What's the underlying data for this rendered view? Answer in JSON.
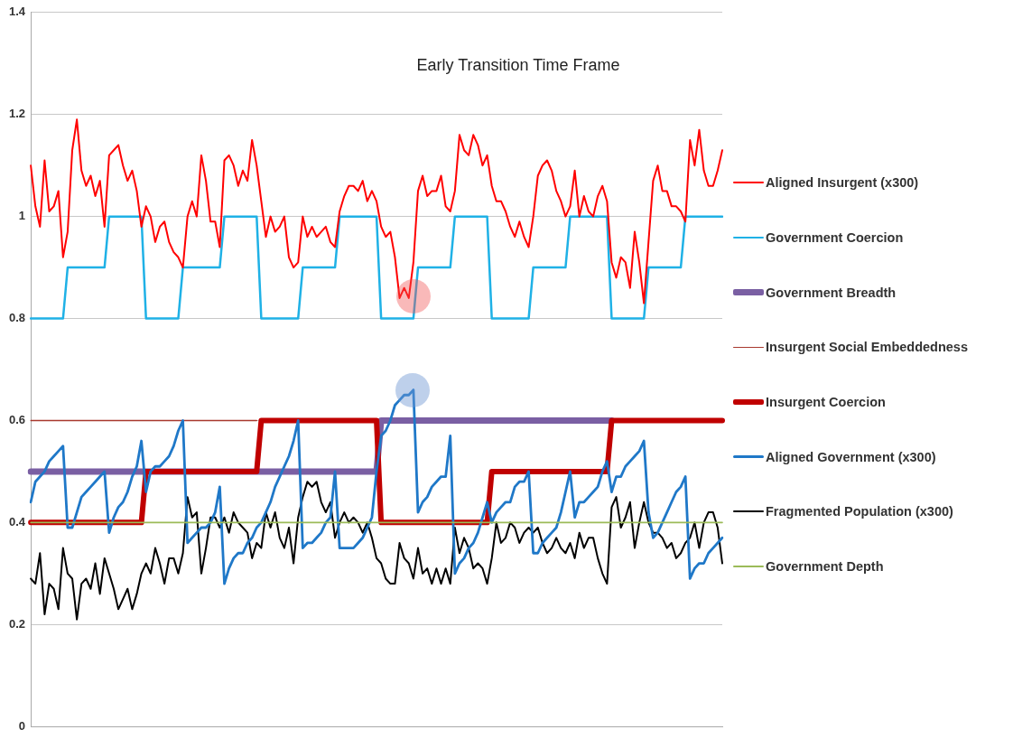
{
  "chart_data": {
    "type": "line",
    "title": "Early Transition Time Frame",
    "categories": [
      null,
      null,
      null,
      null,
      null,
      null,
      null,
      null,
      null,
      null,
      null,
      null,
      null,
      null,
      null,
      null,
      null,
      null,
      null,
      null,
      null,
      null,
      null,
      null,
      null,
      null,
      null,
      null,
      null,
      null,
      null,
      null,
      null,
      null,
      null,
      null,
      null,
      null,
      null,
      null,
      null,
      null,
      null,
      null,
      null,
      null,
      null,
      null,
      null,
      null,
      null,
      null,
      null,
      null,
      null,
      null,
      null,
      null,
      null,
      null,
      null,
      null,
      null,
      null,
      null,
      null,
      null,
      null,
      null,
      null,
      null,
      null,
      null,
      null,
      null,
      null,
      null,
      null,
      null,
      null,
      null,
      null,
      null,
      null,
      null,
      null,
      null,
      null,
      null,
      null,
      null,
      null,
      null,
      null,
      null,
      null,
      null,
      null,
      null,
      null,
      null,
      null,
      null,
      null,
      null,
      null,
      null,
      null,
      null,
      null,
      null,
      null,
      null,
      null,
      null,
      null,
      null,
      null,
      null,
      null,
      null,
      null,
      null,
      null,
      null,
      null,
      null,
      null,
      null,
      null,
      null,
      null,
      null,
      null,
      null,
      null,
      null,
      null,
      null,
      null,
      null,
      null,
      null,
      null,
      null,
      null,
      null,
      null,
      null,
      null,
      null
    ],
    "ylim": [
      0,
      1.4
    ],
    "yticks": [
      0,
      0.2,
      0.4,
      0.6,
      0.8,
      1,
      1.2,
      1.4
    ],
    "grid": "y",
    "legend": "right",
    "tick_labels": "y",
    "line_style": "solid",
    "series": [
      {
        "name": "Aligned Insurgent (x300)",
        "color": "#ff0000",
        "values": [
          1.1,
          1.02,
          0.98,
          1.11,
          1.01,
          1.02,
          1.05,
          0.92,
          0.97,
          1.13,
          1.19,
          1.09,
          1.06,
          1.08,
          1.04,
          1.07,
          0.98,
          1.12,
          1.13,
          1.14,
          1.1,
          1.07,
          1.09,
          1.05,
          0.98,
          1.02,
          1,
          0.95,
          0.98,
          0.99,
          0.95,
          0.93,
          0.92,
          0.9,
          1,
          1.03,
          1,
          1.12,
          1.07,
          0.99,
          0.99,
          0.94,
          1.11,
          1.12,
          1.1,
          1.06,
          1.09,
          1.07,
          1.15,
          1.1,
          1.03,
          0.96,
          1,
          0.97,
          0.98,
          1,
          0.92,
          0.9,
          0.91,
          1,
          0.96,
          0.98,
          0.96,
          0.97,
          0.98,
          0.95,
          0.94,
          1.01,
          1.04,
          1.06,
          1.06,
          1.05,
          1.07,
          1.03,
          1.05,
          1.03,
          0.98,
          0.96,
          0.97,
          0.92,
          0.84,
          0.86,
          0.84,
          0.91,
          1.05,
          1.08,
          1.04,
          1.05,
          1.05,
          1.08,
          1.02,
          1.01,
          1.05,
          1.16,
          1.13,
          1.12,
          1.16,
          1.14,
          1.1,
          1.12,
          1.06,
          1.03,
          1.03,
          1.01,
          0.98,
          0.96,
          0.99,
          0.96,
          0.94,
          1,
          1.08,
          1.1,
          1.11,
          1.09,
          1.05,
          1.03,
          1,
          1.02,
          1.09,
          1,
          1.04,
          1.01,
          1,
          1.04,
          1.06,
          1.03,
          0.91,
          0.88,
          0.92,
          0.91,
          0.86,
          0.97,
          0.91,
          0.83,
          0.95,
          1.07,
          1.1,
          1.05,
          1.05,
          1.02,
          1.02,
          1.01,
          0.99,
          1.15,
          1.1,
          1.17,
          1.09,
          1.06,
          1.06,
          1.09,
          1.13
        ]
      },
      {
        "name": "Government Coercion",
        "color": "#1fb1e6",
        "values": [
          0.8,
          0.8,
          0.8,
          0.8,
          0.8,
          0.8,
          0.8,
          0.8,
          0.9,
          0.9,
          0.9,
          0.9,
          0.9,
          0.9,
          0.9,
          0.9,
          0.9,
          1,
          1,
          1,
          1,
          1,
          1,
          1,
          1,
          0.8,
          0.8,
          0.8,
          0.8,
          0.8,
          0.8,
          0.8,
          0.8,
          0.9,
          0.9,
          0.9,
          0.9,
          0.9,
          0.9,
          0.9,
          0.9,
          0.9,
          1,
          1,
          1,
          1,
          1,
          1,
          1,
          1,
          0.8,
          0.8,
          0.8,
          0.8,
          0.8,
          0.8,
          0.8,
          0.8,
          0.8,
          0.9,
          0.9,
          0.9,
          0.9,
          0.9,
          0.9,
          0.9,
          0.9,
          1,
          1,
          1,
          1,
          1,
          1,
          1,
          1,
          1,
          0.8,
          0.8,
          0.8,
          0.8,
          0.8,
          0.8,
          0.8,
          0.8,
          0.9,
          0.9,
          0.9,
          0.9,
          0.9,
          0.9,
          0.9,
          0.9,
          1,
          1,
          1,
          1,
          1,
          1,
          1,
          1,
          0.8,
          0.8,
          0.8,
          0.8,
          0.8,
          0.8,
          0.8,
          0.8,
          0.8,
          0.9,
          0.9,
          0.9,
          0.9,
          0.9,
          0.9,
          0.9,
          0.9,
          1,
          1,
          1,
          1,
          1,
          1,
          1,
          1,
          1,
          0.8,
          0.8,
          0.8,
          0.8,
          0.8,
          0.8,
          0.8,
          0.8,
          0.9,
          0.9,
          0.9,
          0.9,
          0.9,
          0.9,
          0.9,
          0.9,
          1,
          1,
          1,
          1,
          1,
          1,
          1,
          1,
          1
        ]
      },
      {
        "name": "Government Breadth",
        "color": "#7a5fa3",
        "values": [
          0.5,
          0.5,
          0.5,
          0.5,
          0.5,
          0.5,
          0.5,
          0.5,
          0.5,
          0.5,
          0.5,
          0.5,
          0.5,
          0.5,
          0.5,
          0.5,
          0.5,
          0.5,
          0.5,
          0.5,
          0.5,
          0.5,
          0.5,
          0.5,
          0.5,
          0.5,
          0.5,
          0.5,
          0.5,
          0.5,
          0.5,
          0.5,
          0.5,
          0.5,
          0.5,
          0.5,
          0.5,
          0.5,
          0.5,
          0.5,
          0.5,
          0.5,
          0.5,
          0.5,
          0.5,
          0.5,
          0.5,
          0.5,
          0.5,
          0.5,
          0.5,
          0.5,
          0.5,
          0.5,
          0.5,
          0.5,
          0.5,
          0.5,
          0.5,
          0.5,
          0.5,
          0.5,
          0.5,
          0.5,
          0.5,
          0.5,
          0.5,
          0.5,
          0.5,
          0.5,
          0.5,
          0.5,
          0.5,
          0.5,
          0.5,
          0.5,
          0.6,
          0.6,
          0.6,
          0.6,
          0.6,
          0.6,
          0.6,
          0.6,
          0.6,
          0.6,
          0.6,
          0.6,
          0.6,
          0.6,
          0.6,
          0.6,
          0.6,
          0.6,
          0.6,
          0.6,
          0.6,
          0.6,
          0.6,
          0.6,
          0.6,
          0.6,
          0.6,
          0.6,
          0.6,
          0.6,
          0.6,
          0.6,
          0.6,
          0.6,
          0.6,
          0.6,
          0.6,
          0.6,
          0.6,
          0.6,
          0.6,
          0.6,
          0.6,
          0.6,
          0.6,
          0.6,
          0.6,
          0.6,
          0.6,
          0.6,
          0.6,
          null,
          null,
          null,
          null,
          null,
          null,
          null,
          null,
          null,
          null,
          null,
          null,
          null,
          null,
          null,
          null,
          null,
          null,
          null,
          null,
          null,
          null,
          null,
          null
        ]
      },
      {
        "name": "Insurgent Social Embeddedness",
        "color": "#a8392f",
        "values": [
          0.6,
          0.6,
          0.6,
          0.6,
          0.6,
          0.6,
          0.6,
          0.6,
          0.6,
          0.6,
          0.6,
          0.6,
          0.6,
          0.6,
          0.6,
          0.6,
          0.6,
          0.6,
          0.6,
          0.6,
          0.6,
          0.6,
          0.6,
          0.6,
          0.6,
          0.6,
          0.6,
          0.6,
          0.6,
          0.6,
          0.6,
          0.6,
          0.6,
          0.6,
          0.6,
          0.6,
          0.6,
          0.6,
          0.6,
          0.6,
          0.6,
          0.6,
          0.6,
          0.6,
          0.6,
          0.6,
          0.6,
          0.6,
          0.6,
          0.6,
          null,
          null,
          null,
          null,
          null,
          null,
          null,
          null,
          null,
          null,
          null,
          null,
          null,
          null,
          null,
          null,
          null,
          null,
          null,
          null,
          null,
          null,
          null,
          null,
          null,
          null,
          null,
          null,
          null,
          null,
          null,
          null,
          null,
          null,
          null,
          null,
          null,
          null,
          null,
          null,
          null,
          null,
          null,
          null,
          null,
          null,
          null,
          null,
          null,
          null,
          null,
          null,
          null,
          null,
          null,
          null,
          null,
          null,
          null,
          null,
          null,
          null,
          null,
          null,
          null,
          null,
          null,
          null,
          null,
          null,
          null,
          null,
          null,
          null,
          null,
          null,
          null,
          null,
          null,
          null,
          null,
          null,
          null,
          null,
          null,
          null,
          null,
          null,
          null,
          null,
          null,
          null,
          null,
          null,
          null,
          null,
          null,
          null,
          null,
          null,
          null
        ]
      },
      {
        "name": "Insurgent Coercion",
        "color": "#c00000",
        "values": [
          0.4,
          0.4,
          0.4,
          0.4,
          0.4,
          0.4,
          0.4,
          0.4,
          0.4,
          0.4,
          0.4,
          0.4,
          0.4,
          0.4,
          0.4,
          0.4,
          0.4,
          0.4,
          0.4,
          0.4,
          0.4,
          0.4,
          0.4,
          0.4,
          0.4,
          0.5,
          0.5,
          0.5,
          0.5,
          0.5,
          0.5,
          0.5,
          0.5,
          0.5,
          0.5,
          0.5,
          0.5,
          0.5,
          0.5,
          0.5,
          0.5,
          0.5,
          0.5,
          0.5,
          0.5,
          0.5,
          0.5,
          0.5,
          0.5,
          0.5,
          0.6,
          0.6,
          0.6,
          0.6,
          0.6,
          0.6,
          0.6,
          0.6,
          0.6,
          0.6,
          0.6,
          0.6,
          0.6,
          0.6,
          0.6,
          0.6,
          0.6,
          0.6,
          0.6,
          0.6,
          0.6,
          0.6,
          0.6,
          0.6,
          0.6,
          0.6,
          0.4,
          0.4,
          0.4,
          0.4,
          0.4,
          0.4,
          0.4,
          0.4,
          0.4,
          0.4,
          0.4,
          0.4,
          0.4,
          0.4,
          0.4,
          0.4,
          0.4,
          0.4,
          0.4,
          0.4,
          0.4,
          0.4,
          0.4,
          0.4,
          0.5,
          0.5,
          0.5,
          0.5,
          0.5,
          0.5,
          0.5,
          0.5,
          0.5,
          0.5,
          0.5,
          0.5,
          0.5,
          0.5,
          0.5,
          0.5,
          0.5,
          0.5,
          0.5,
          0.5,
          0.5,
          0.5,
          0.5,
          0.5,
          0.5,
          0.5,
          0.6,
          0.6,
          0.6,
          0.6,
          0.6,
          0.6,
          0.6,
          0.6,
          0.6,
          0.6,
          0.6,
          0.6,
          0.6,
          0.6,
          0.6,
          0.6,
          0.6,
          0.6,
          0.6,
          0.6,
          0.6,
          0.6,
          0.6,
          0.6,
          0.6
        ]
      },
      {
        "name": "Aligned Government (x300)",
        "color": "#1f78c8",
        "values": [
          0.44,
          0.48,
          0.49,
          0.5,
          0.52,
          0.53,
          0.54,
          0.55,
          0.39,
          0.39,
          0.42,
          0.45,
          0.46,
          0.47,
          0.48,
          0.49,
          0.5,
          0.38,
          0.41,
          0.43,
          0.44,
          0.46,
          0.49,
          0.51,
          0.56,
          0.46,
          0.5,
          0.51,
          0.51,
          0.52,
          0.53,
          0.55,
          0.58,
          0.6,
          0.36,
          0.37,
          0.38,
          0.39,
          0.39,
          0.4,
          0.42,
          0.47,
          0.28,
          0.31,
          0.33,
          0.34,
          0.34,
          0.36,
          0.37,
          0.39,
          0.4,
          0.42,
          0.44,
          0.47,
          0.49,
          0.51,
          0.53,
          0.56,
          0.6,
          0.35,
          0.36,
          0.36,
          0.37,
          0.38,
          0.4,
          0.41,
          0.5,
          0.35,
          0.35,
          0.35,
          0.35,
          0.36,
          0.37,
          0.39,
          0.41,
          0.5,
          0.57,
          0.58,
          0.6,
          0.63,
          0.64,
          0.65,
          0.65,
          0.66,
          0.42,
          0.44,
          0.45,
          0.47,
          0.48,
          0.49,
          0.49,
          0.57,
          0.3,
          0.32,
          0.33,
          0.35,
          0.36,
          0.38,
          0.41,
          0.44,
          0.4,
          0.42,
          0.43,
          0.44,
          0.44,
          0.47,
          0.48,
          0.48,
          0.5,
          0.34,
          0.34,
          0.36,
          0.37,
          0.38,
          0.39,
          0.42,
          0.46,
          0.5,
          0.41,
          0.44,
          0.44,
          0.45,
          0.46,
          0.47,
          0.5,
          0.52,
          0.46,
          0.49,
          0.49,
          0.51,
          0.52,
          0.53,
          0.54,
          0.56,
          0.42,
          0.37,
          0.38,
          0.4,
          0.42,
          0.44,
          0.46,
          0.47,
          0.49,
          0.29,
          0.31,
          0.32,
          0.32,
          0.34,
          0.35,
          0.36,
          0.37
        ]
      },
      {
        "name": "Fragmented Population (x300)",
        "color": "#000000",
        "values": [
          0.29,
          0.28,
          0.34,
          0.22,
          0.28,
          0.27,
          0.23,
          0.35,
          0.3,
          0.29,
          0.21,
          0.28,
          0.29,
          0.27,
          0.32,
          0.26,
          0.33,
          0.3,
          0.27,
          0.23,
          0.25,
          0.27,
          0.23,
          0.26,
          0.3,
          0.32,
          0.3,
          0.35,
          0.32,
          0.28,
          0.33,
          0.33,
          0.3,
          0.34,
          0.45,
          0.41,
          0.42,
          0.3,
          0.35,
          0.41,
          0.41,
          0.39,
          0.41,
          0.38,
          0.42,
          0.4,
          0.39,
          0.38,
          0.33,
          0.36,
          0.35,
          0.42,
          0.39,
          0.42,
          0.37,
          0.35,
          0.39,
          0.32,
          0.41,
          0.45,
          0.48,
          0.47,
          0.48,
          0.44,
          0.42,
          0.44,
          0.37,
          0.4,
          0.42,
          0.4,
          0.41,
          0.4,
          0.38,
          0.4,
          0.37,
          0.33,
          0.32,
          0.29,
          0.28,
          0.28,
          0.36,
          0.33,
          0.32,
          0.29,
          0.35,
          0.3,
          0.31,
          0.28,
          0.31,
          0.28,
          0.31,
          0.28,
          0.39,
          0.34,
          0.37,
          0.35,
          0.31,
          0.32,
          0.31,
          0.28,
          0.33,
          0.4,
          0.36,
          0.37,
          0.4,
          0.39,
          0.36,
          0.38,
          0.39,
          0.38,
          0.39,
          0.36,
          0.34,
          0.35,
          0.37,
          0.35,
          0.34,
          0.36,
          0.33,
          0.38,
          0.35,
          0.37,
          0.37,
          0.33,
          0.3,
          0.28,
          0.43,
          0.45,
          0.39,
          0.41,
          0.44,
          0.35,
          0.4,
          0.44,
          0.4,
          0.38,
          0.38,
          0.37,
          0.35,
          0.36,
          0.33,
          0.34,
          0.36,
          0.37,
          0.4,
          0.35,
          0.4,
          0.42,
          0.42,
          0.39,
          0.32
        ]
      },
      {
        "name": "Government Depth",
        "color": "#9bbb59",
        "values": [
          0.4,
          0.4,
          0.4,
          0.4,
          0.4,
          0.4,
          0.4,
          0.4,
          0.4,
          0.4,
          0.4,
          0.4,
          0.4,
          0.4,
          0.4,
          0.4,
          0.4,
          0.4,
          0.4,
          0.4,
          0.4,
          0.4,
          0.4,
          0.4,
          0.4,
          0.4,
          0.4,
          0.4,
          0.4,
          0.4,
          0.4,
          0.4,
          0.4,
          0.4,
          0.4,
          0.4,
          0.4,
          0.4,
          0.4,
          0.4,
          0.4,
          0.4,
          0.4,
          0.4,
          0.4,
          0.4,
          0.4,
          0.4,
          0.4,
          0.4,
          0.4,
          0.4,
          0.4,
          0.4,
          0.4,
          0.4,
          0.4,
          0.4,
          0.4,
          0.4,
          0.4,
          0.4,
          0.4,
          0.4,
          0.4,
          0.4,
          0.4,
          0.4,
          0.4,
          0.4,
          0.4,
          0.4,
          0.4,
          0.4,
          0.4,
          0.4,
          0.4,
          0.4,
          0.4,
          0.4,
          0.4,
          0.4,
          0.4,
          0.4,
          0.4,
          0.4,
          0.4,
          0.4,
          0.4,
          0.4,
          0.4,
          0.4,
          0.4,
          0.4,
          0.4,
          0.4,
          0.4,
          0.4,
          0.4,
          0.4,
          0.4,
          0.4,
          0.4,
          0.4,
          0.4,
          0.4,
          0.4,
          0.4,
          0.4,
          0.4,
          0.4,
          0.4,
          0.4,
          0.4,
          0.4,
          0.4,
          0.4,
          0.4,
          0.4,
          0.4,
          0.4,
          0.4,
          0.4,
          0.4,
          0.4,
          0.4,
          0.4,
          0.4,
          0.4,
          0.4,
          0.4,
          0.4,
          0.4,
          0.4,
          0.4,
          0.4,
          0.4,
          0.4,
          0.4,
          0.4,
          0.4,
          0.4,
          0.4,
          0.4,
          0.4,
          0.4,
          0.4,
          0.4,
          0.4,
          0.4,
          0.4
        ]
      }
    ]
  }
}
